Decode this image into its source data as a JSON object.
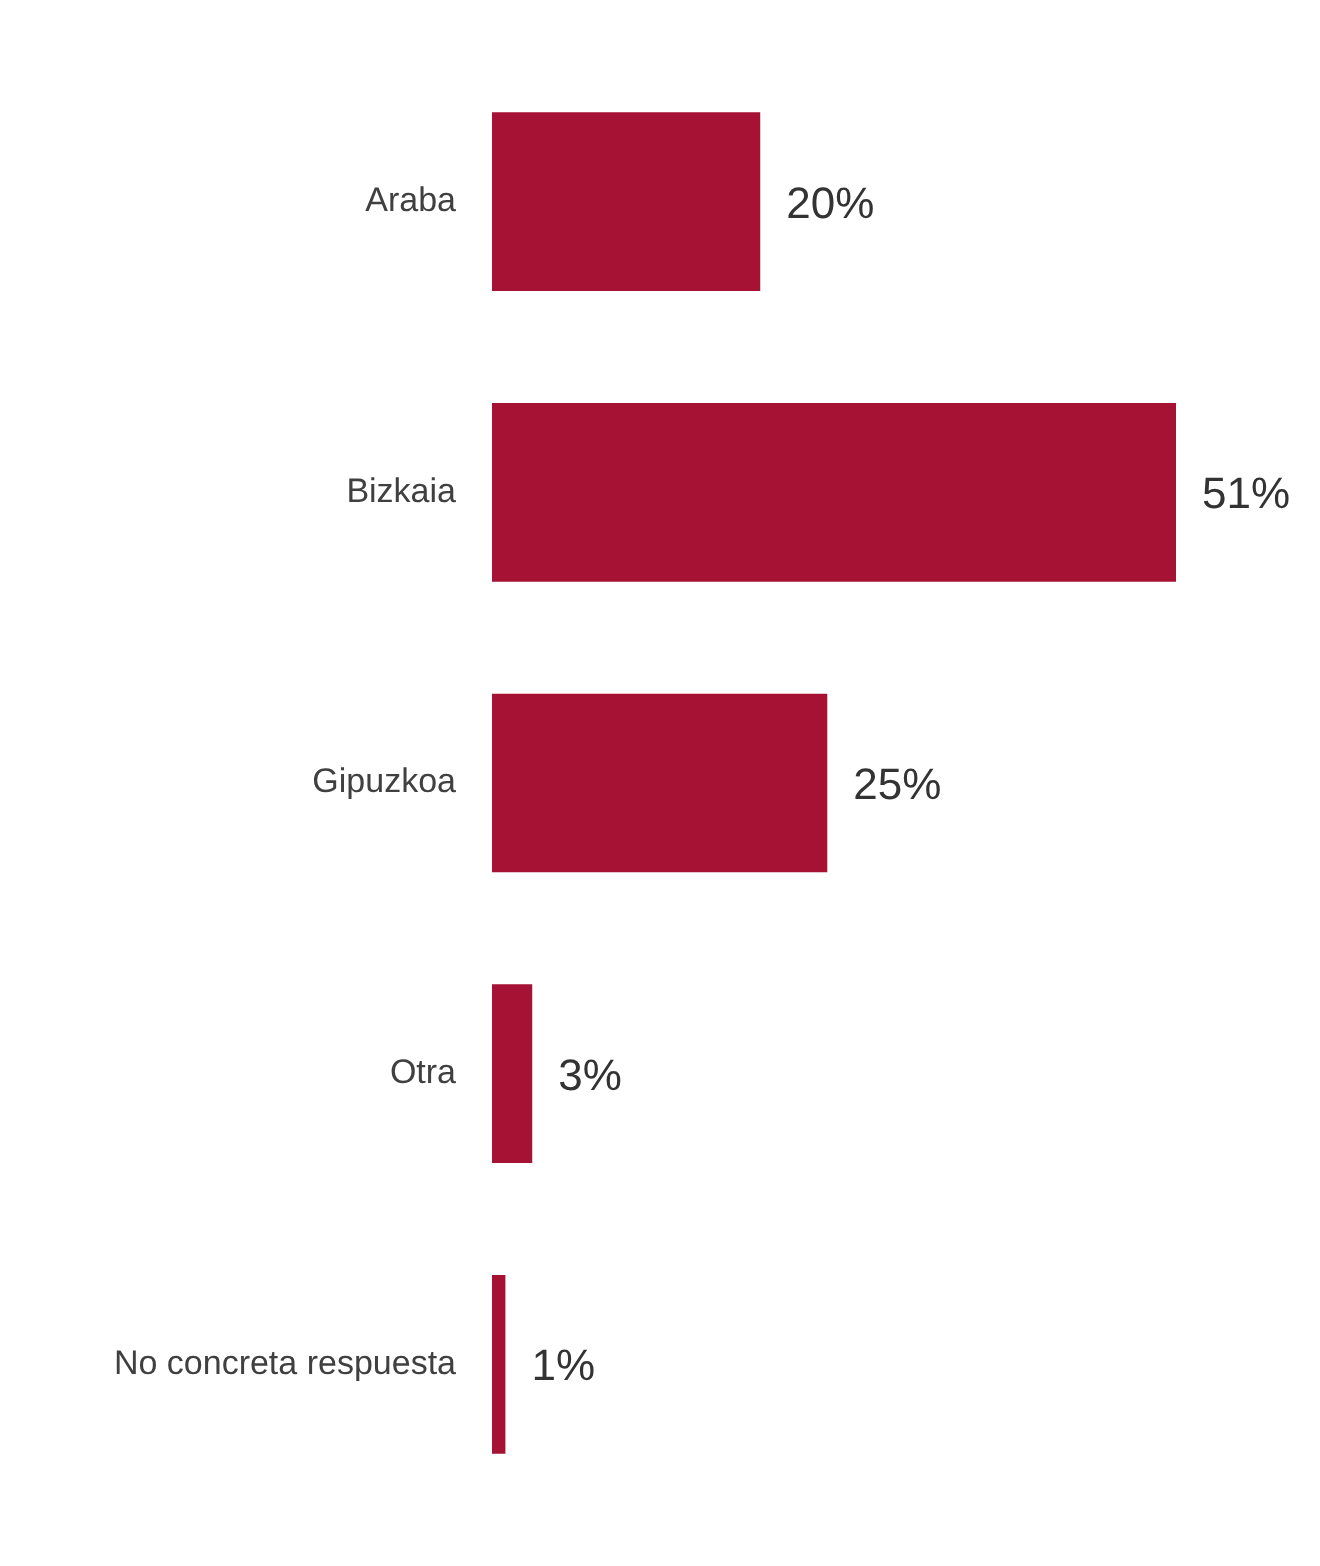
{
  "chart_data": {
    "type": "bar",
    "orientation": "horizontal",
    "categories": [
      "Araba",
      "Bizkaia",
      "Gipuzkoa",
      "Otra",
      "No concreta respuesta"
    ],
    "values": [
      20,
      51,
      25,
      3,
      1
    ],
    "color": "#a51234",
    "data_labels": true,
    "value_labels": [
      "20%",
      "51%",
      "25%",
      "3%",
      "1%"
    ],
    "grid": false,
    "legend": false
  }
}
